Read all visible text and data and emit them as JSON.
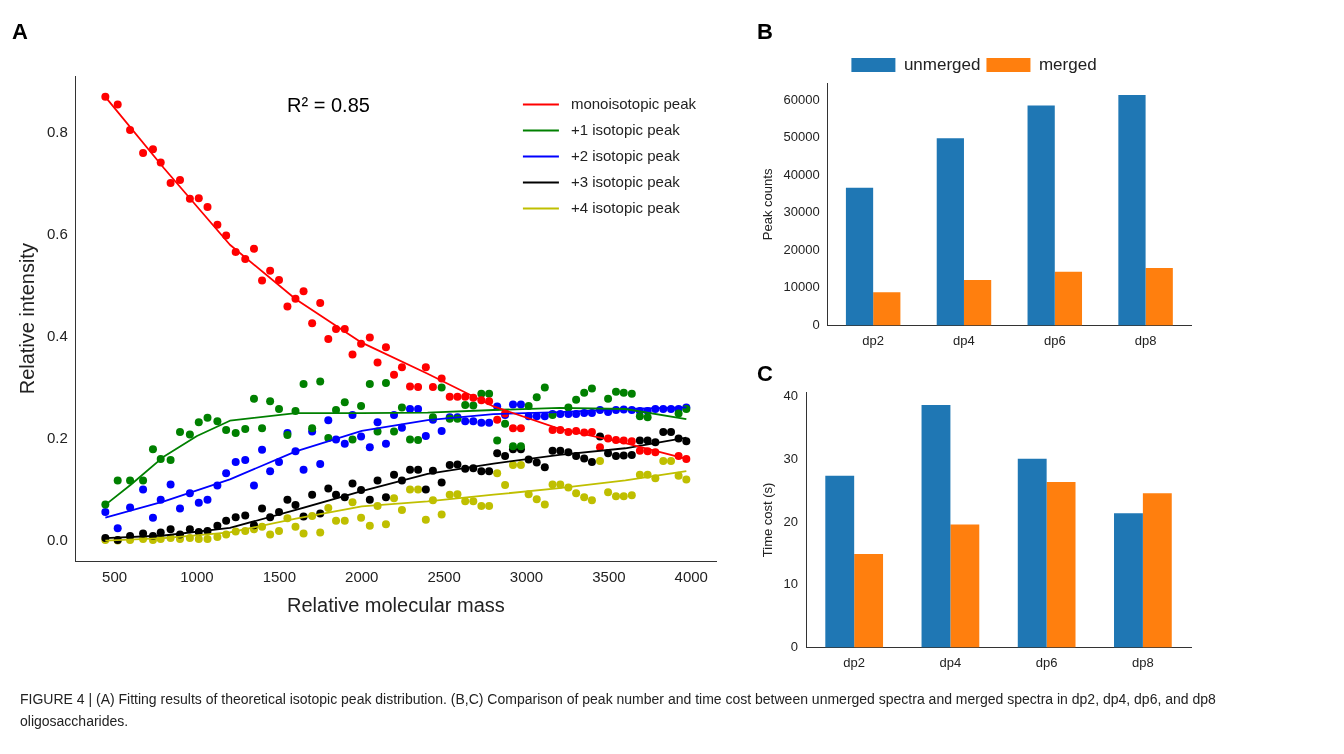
{
  "chart_data": [
    {
      "type": "scatter",
      "title": "A",
      "xlabel": "Relative molecular mass",
      "ylabel": "Relative intensity",
      "annotations": [
        "R² = 0.85"
      ],
      "legend": "top right",
      "x": [
        444,
        519,
        594,
        673,
        733,
        780,
        840,
        897,
        957,
        1011,
        1064,
        1124,
        1177,
        1235,
        1293,
        1346,
        1395,
        1444,
        1498,
        1549,
        1598,
        1647,
        1699,
        1748,
        1797,
        1844,
        1897,
        1944,
        1996,
        2049,
        2096,
        2147,
        2196,
        2244,
        2293,
        2342,
        2389,
        2432,
        2485,
        2534,
        2581,
        2628,
        2677,
        2726,
        2773,
        2822,
        2870,
        2918,
        2966,
        3013,
        3062,
        3111,
        3158,
        3205,
        3254,
        3301,
        3350,
        3397,
        3446,
        3495,
        3543,
        3590,
        3639,
        3688,
        3735,
        3782,
        3830,
        3877,
        3923,
        3970
      ],
      "series": [
        {
          "color": "#ff0000",
          "marker": "circle",
          "values": [
            0.87,
            0.855,
            0.805,
            0.76,
            0.767,
            0.741,
            0.701,
            0.707,
            0.67,
            0.671,
            0.654,
            0.619,
            0.598,
            0.566,
            0.552,
            0.572,
            0.51,
            0.529,
            0.511,
            0.459,
            0.474,
            0.489,
            0.426,
            0.466,
            0.395,
            0.415,
            0.415,
            0.365,
            0.386,
            0.398,
            0.349,
            0.379,
            0.325,
            0.34,
            0.302,
            0.301,
            0.34,
            0.301,
            0.318,
            0.282,
            0.282,
            0.282,
            0.28,
            0.275,
            0.273,
            0.237,
            0.249,
            0.22,
            0.22,
            null,
            null,
            null,
            0.217,
            0.217,
            0.213,
            0.215,
            0.212,
            0.213,
            0.183,
            0.2,
            0.197,
            0.196,
            0.195,
            0.176,
            0.175,
            0.173,
            null,
            null,
            0.166,
            0.16
          ]
        },
        {
          "color": "#008000",
          "marker": "circle",
          "values": [
            0.071,
            0.118,
            0.118,
            0.118,
            0.179,
            0.16,
            0.158,
            0.213,
            0.208,
            0.232,
            0.241,
            0.234,
            0.217,
            0.211,
            0.219,
            0.278,
            0.22,
            0.273,
            0.258,
            0.207,
            0.254,
            0.307,
            0.22,
            0.312,
            0.201,
            0.256,
            0.271,
            0.198,
            0.264,
            0.307,
            0.214,
            0.309,
            0.214,
            0.261,
            0.198,
            0.197,
            null,
            0.242,
            0.3,
            0.239,
            0.239,
            0.266,
            0.265,
            0.288,
            0.288,
            0.196,
            0.229,
            0.185,
            0.185,
            0.264,
            0.281,
            0.3,
            0.246,
            null,
            0.261,
            0.276,
            0.29,
            0.298,
            null,
            0.278,
            0.292,
            0.29,
            0.288,
            0.244,
            0.242,
            null,
            null,
            null,
            0.249,
            0.258
          ]
        },
        {
          "color": "#0000ff",
          "marker": "circle",
          "values": [
            0.056,
            0.024,
            0.065,
            0.1,
            0.045,
            0.08,
            0.11,
            0.063,
            0.093,
            0.074,
            0.08,
            0.108,
            0.132,
            0.154,
            0.158,
            0.108,
            0.178,
            0.136,
            0.154,
            0.211,
            0.175,
            0.139,
            0.214,
            0.15,
            0.236,
            0.198,
            0.19,
            0.246,
            0.204,
            0.183,
            0.232,
            0.19,
            0.246,
            0.221,
            0.258,
            0.258,
            0.205,
            0.237,
            0.215,
            0.242,
            0.242,
            0.234,
            0.234,
            0.231,
            0.231,
            0.263,
            0.246,
            0.267,
            0.267,
            0.244,
            0.244,
            0.244,
            0.248,
            0.248,
            0.248,
            0.248,
            0.25,
            0.25,
            0.256,
            0.252,
            0.256,
            0.257,
            0.256,
            0.254,
            0.254,
            0.258,
            0.258,
            0.258,
            0.258,
            0.261
          ]
        },
        {
          "color": "#000000",
          "marker": "circle",
          "values": [
            0.005,
            0.001,
            0.009,
            0.014,
            0.009,
            0.016,
            0.022,
            0.012,
            0.022,
            0.017,
            0.019,
            0.029,
            0.039,
            0.046,
            0.049,
            0.03,
            0.063,
            0.046,
            0.056,
            0.08,
            0.07,
            0.047,
            0.09,
            0.053,
            0.102,
            0.09,
            0.085,
            0.112,
            0.099,
            0.08,
            0.118,
            0.085,
            0.129,
            0.118,
            0.139,
            0.139,
            0.1,
            0.137,
            0.114,
            0.148,
            0.149,
            0.141,
            0.142,
            0.136,
            0.136,
            0.171,
            0.166,
            0.179,
            0.179,
            0.159,
            0.153,
            0.144,
            0.176,
            0.176,
            0.173,
            0.166,
            0.161,
            0.154,
            0.204,
            0.171,
            0.166,
            0.167,
            0.168,
            0.196,
            0.196,
            0.193,
            0.213,
            0.213,
            0.2,
            0.195
          ]
        },
        {
          "color": "#bfbf00",
          "marker": "circle",
          "values": [
            0.001,
            0,
            0.001,
            0.003,
            0.001,
            0.003,
            0.005,
            0.003,
            0.005,
            0.003,
            0.003,
            0.007,
            0.012,
            0.018,
            0.019,
            0.022,
            0.027,
            0.012,
            0.019,
            0.044,
            0.027,
            0.014,
            0.048,
            0.016,
            0.064,
            0.039,
            0.039,
            0.075,
            0.045,
            0.029,
            0.068,
            0.032,
            0.083,
            0.06,
            0.1,
            0.1,
            0.041,
            0.079,
            0.051,
            0.09,
            0.091,
            0.077,
            0.077,
            0.068,
            0.068,
            0.132,
            0.109,
            0.148,
            0.148,
            0.091,
            0.081,
            0.071,
            0.11,
            0.11,
            0.104,
            0.093,
            0.085,
            0.079,
            0.156,
            0.095,
            0.087,
            0.087,
            0.089,
            0.129,
            0.129,
            0.122,
            0.156,
            0.156,
            0.127,
            0.12
          ]
        },
        {
          "type": "line",
          "name": "monoisotopic peak",
          "color": "#ff0000",
          "marker": "none",
          "x": [
            444,
            800,
            1200,
            1600,
            2000,
            2400,
            2800,
            3200,
            3600,
            3970
          ],
          "values": [
            0.87,
            0.73,
            0.58,
            0.473,
            0.388,
            0.327,
            0.263,
            0.219,
            0.191,
            0.16
          ]
        },
        {
          "type": "line",
          "name": "+1 isotopic peak",
          "color": "#008000",
          "marker": "none",
          "x": [
            444,
            600,
            800,
            1000,
            1200,
            1600,
            2000,
            2400,
            2800,
            3200,
            3600,
            3970
          ],
          "values": [
            0.07,
            0.11,
            0.165,
            0.205,
            0.235,
            0.25,
            0.25,
            0.251,
            0.256,
            0.26,
            0.258,
            0.238
          ]
        },
        {
          "type": "line",
          "name": "+2 isotopic peak",
          "color": "#0000ff",
          "marker": "none",
          "x": [
            444,
            800,
            1200,
            1600,
            2000,
            2400,
            2800,
            3200,
            3600,
            3970
          ],
          "values": [
            0.045,
            0.077,
            0.12,
            0.175,
            0.215,
            0.236,
            0.248,
            0.252,
            0.258,
            0.261
          ]
        },
        {
          "type": "line",
          "name": "+3 isotopic peak",
          "color": "#000000",
          "marker": "none",
          "x": [
            444,
            800,
            1200,
            1600,
            2000,
            2400,
            2800,
            3200,
            3600,
            3970
          ],
          "values": [
            0.005,
            0.01,
            0.025,
            0.06,
            0.097,
            0.131,
            0.151,
            0.168,
            0.181,
            0.202
          ]
        },
        {
          "type": "line",
          "name": "+4 isotopic peak",
          "color": "#bfbf00",
          "marker": "none",
          "x": [
            444,
            800,
            1200,
            1600,
            2000,
            2400,
            2800,
            3200,
            3600,
            3970
          ],
          "values": [
            0,
            0.005,
            0.016,
            0.043,
            0.067,
            0.077,
            0.09,
            0.103,
            0.118,
            0.136
          ]
        }
      ],
      "xlim": [
        265,
        4150
      ],
      "ylim": [
        -0.04,
        0.91
      ],
      "xticks": [
        500,
        1000,
        1500,
        2000,
        2500,
        3000,
        3500,
        4000
      ],
      "yticks": [
        {
          "value": 0,
          "label": "0.0"
        },
        {
          "value": 0.2,
          "label": "0.2"
        },
        {
          "value": 0.4,
          "label": "0.4"
        },
        {
          "value": 0.6,
          "label": "0.6"
        },
        {
          "value": 0.8,
          "label": "0.8"
        }
      ]
    },
    {
      "type": "bar",
      "title": "B",
      "ylabel": "Peak counts",
      "legend": "top",
      "categories": [
        "dp2",
        "dp4",
        "dp6",
        "dp8"
      ],
      "series": [
        {
          "name": "unmerged",
          "color": "#1f77b4",
          "values": [
            36600,
            49800,
            58500,
            61300
          ]
        },
        {
          "name": "merged",
          "color": "#ff7f0e",
          "values": [
            8800,
            12100,
            14300,
            15300
          ]
        }
      ],
      "ylim": [
        0,
        64400
      ],
      "yticks": [
        0,
        10000,
        20000,
        30000,
        40000,
        50000,
        60000
      ]
    },
    {
      "type": "bar",
      "title": "C",
      "ylabel": "Time cost (s)",
      "categories": [
        "dp2",
        "dp4",
        "dp6",
        "dp8"
      ],
      "annotations": [
        "FIGURE 4 | (A) Fitting results of theoretical isotopic peak distribution. (B,C) Comparison of peak number and time cost between unmerged spectra and merged spectra in dp2, dp4, dp6, and dp8 oligosaccharides."
      ],
      "series": [
        {
          "color": "#1f77b4",
          "values": [
            27.4,
            38.7,
            30.1,
            21.4
          ]
        },
        {
          "color": "#ff7f0e",
          "values": [
            14.9,
            19.6,
            26.4,
            24.6
          ]
        }
      ],
      "ylim": [
        0,
        40.7
      ],
      "yticks": [
        0,
        10,
        20,
        30,
        40
      ]
    }
  ]
}
